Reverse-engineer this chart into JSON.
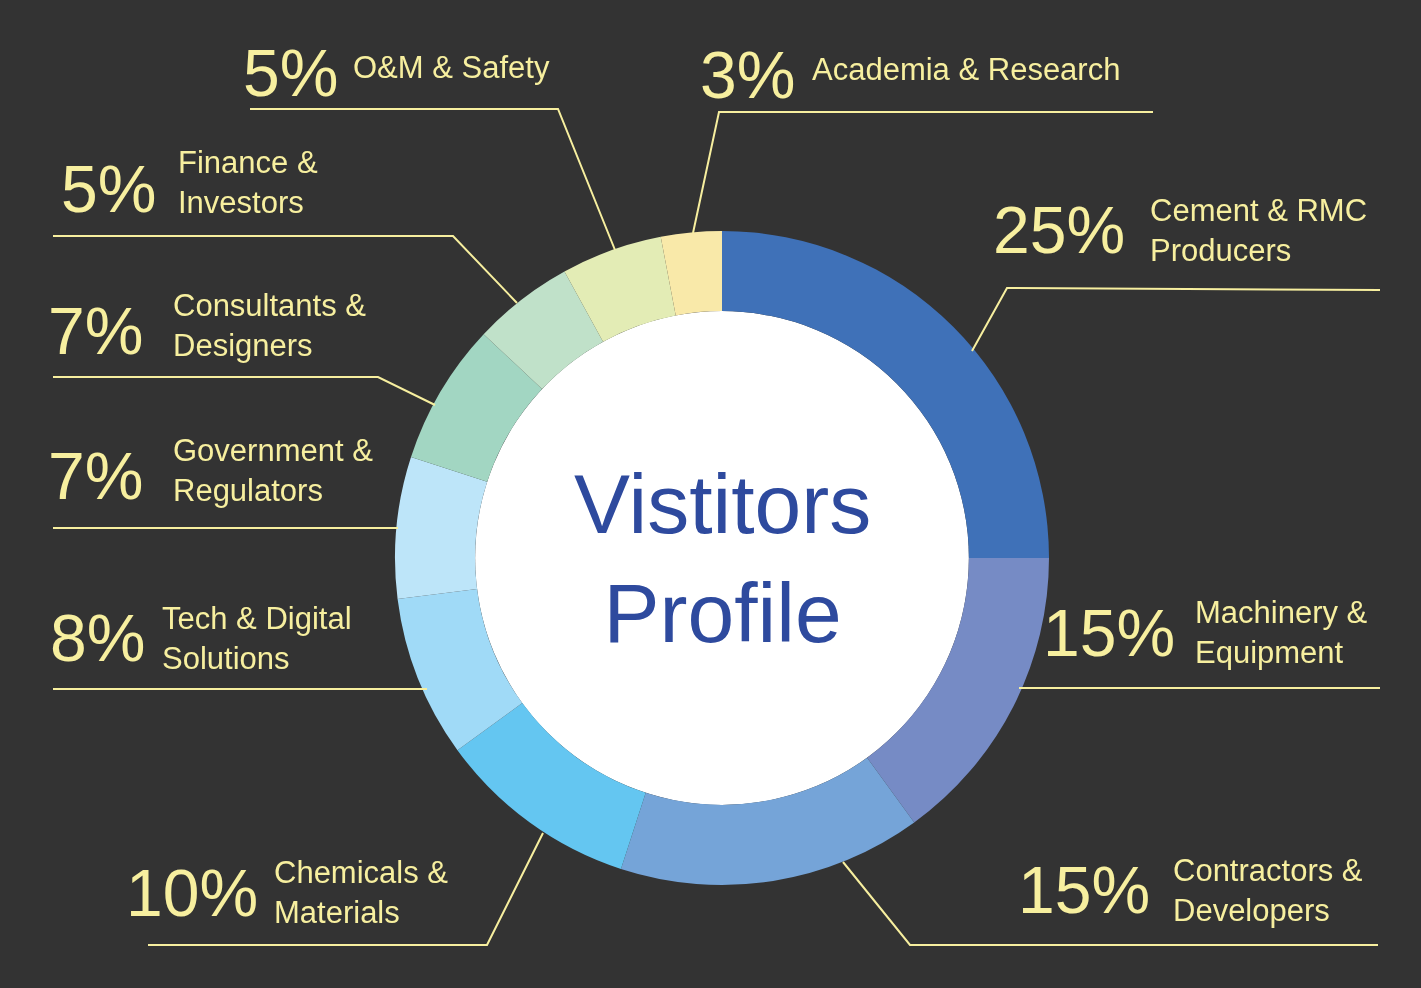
{
  "chart_data": {
    "type": "donut",
    "title": "Vistitors Profile",
    "categories": [
      "Cement & RMC Producers",
      "Machinery & Equipment",
      "Contractors & Developers",
      "Chemicals & Materials",
      "Tech & Digital Solutions",
      "Government & Regulators",
      "Consultants & Designers",
      "Finance & Investors",
      "O&M & Safety",
      "Academia & Research"
    ],
    "values": [
      25,
      15,
      15,
      10,
      8,
      7,
      7,
      5,
      5,
      3
    ],
    "value_labels": [
      "25%",
      "15%",
      "15%",
      "10%",
      "8%",
      "7%",
      "7%",
      "5%",
      "5%",
      "3%"
    ],
    "colors": [
      "#3f71b8",
      "#768bc5",
      "#75a4d8",
      "#64c6f1",
      "#a0daf7",
      "#bde5f9",
      "#a2d6c2",
      "#c0e1c9",
      "#e3ecb5",
      "#f9e9a9"
    ]
  }
}
